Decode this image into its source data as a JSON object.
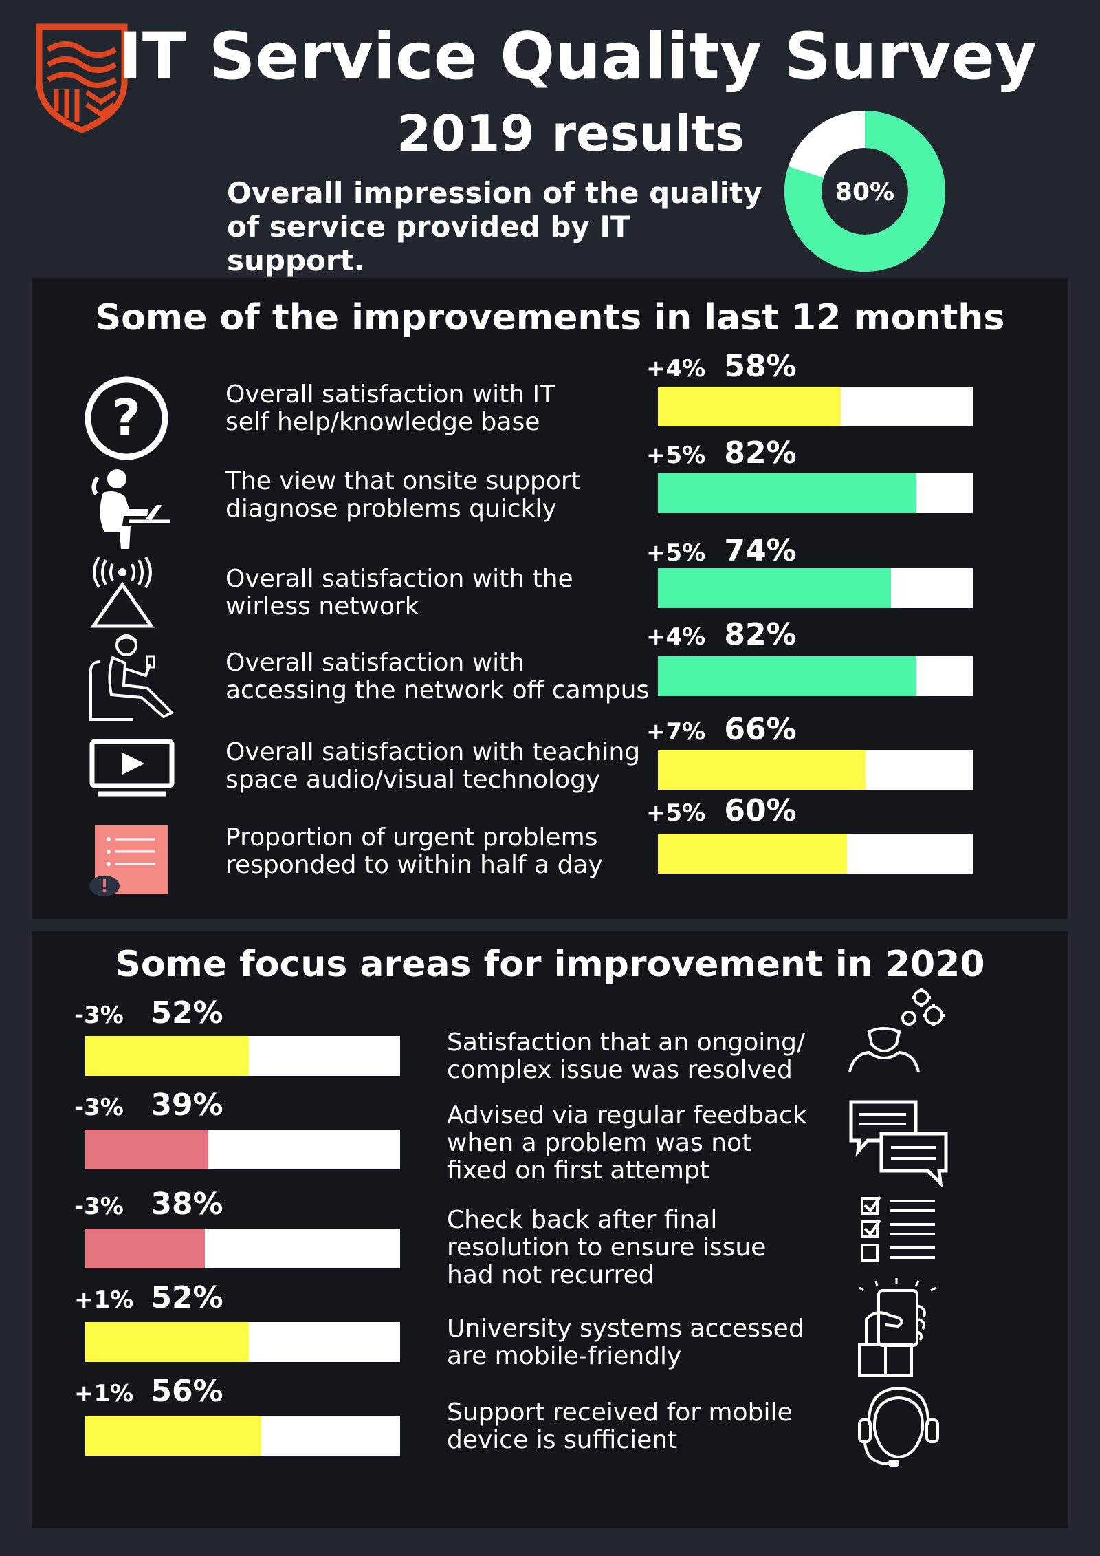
{
  "header": {
    "title": "IT Service Quality Survey",
    "subtitle": "2019 results",
    "overall_line1": "Overall impression of the quality",
    "overall_line2": "of service provided by IT support.",
    "overall_value": 80,
    "overall_label": "80%",
    "logo_icon": "shield-logo-icon"
  },
  "colors": {
    "background": "#22262f",
    "panel": "#14161c",
    "green": "#4cf4a8",
    "yellow": "#fcfc47",
    "red": "#e5727f",
    "white": "#ffffff",
    "logo": "#e0461f"
  },
  "improvements": {
    "title": "Some of the improvements in last 12 months",
    "items": [
      {
        "label": "Overall satisfaction with IT\nself help/knowledge base",
        "value": 58,
        "value_label": "58%",
        "change": "+4%",
        "color": "#fcfc47",
        "icon": "question-mark-icon"
      },
      {
        "label": "The view that onsite support\ndiagnose problems quickly",
        "value": 82,
        "value_label": "82%",
        "change": "+5%",
        "color": "#4cf4a8",
        "icon": "person-laptop-icon"
      },
      {
        "label": "Overall satisfaction with the\nwirless network",
        "value": 74,
        "value_label": "74%",
        "change": "+5%",
        "color": "#4cf4a8",
        "icon": "wireless-tower-icon"
      },
      {
        "label": "Overall satisfaction with\naccessing the network off campus",
        "value": 82,
        "value_label": "82%",
        "change": "+4%",
        "color": "#4cf4a8",
        "icon": "person-phone-chair-icon"
      },
      {
        "label": "Overall satisfaction with teaching\nspace audio/visual technology",
        "value": 66,
        "value_label": "66%",
        "change": "+7%",
        "color": "#fcfc47",
        "icon": "video-screen-icon"
      },
      {
        "label": "Proportion of urgent problems\nresponded to within half a day",
        "value": 60,
        "value_label": "60%",
        "change": "+5%",
        "color": "#fcfc47",
        "icon": "urgent-list-icon"
      }
    ]
  },
  "focus": {
    "title": "Some focus areas for improvement in 2020",
    "items": [
      {
        "label": "Satisfaction that an ongoing/\ncomplex issue was resolved",
        "value": 52,
        "value_label": "52%",
        "change": "-3%",
        "color": "#fcfc47",
        "icon": "person-gears-icon"
      },
      {
        "label": "Advised via regular feedback\nwhen a problem was not\nfixed on first attempt",
        "value": 39,
        "value_label": "39%",
        "change": "-3%",
        "color": "#e5727f",
        "icon": "chat-bubbles-icon"
      },
      {
        "label": "Check back after final\nresolution to ensure issue\nhad not recurred",
        "value": 38,
        "value_label": "38%",
        "change": "-3%",
        "color": "#e5727f",
        "icon": "checklist-icon"
      },
      {
        "label": "University systems accessed\nare mobile-friendly",
        "value": 52,
        "value_label": "52%",
        "change": "+1%",
        "color": "#fcfc47",
        "icon": "hand-phone-icon"
      },
      {
        "label": "Support received for mobile\ndevice is sufficient",
        "value": 56,
        "value_label": "56%",
        "change": "+1%",
        "color": "#fcfc47",
        "icon": "headset-agent-icon"
      }
    ]
  },
  "chart_data": [
    {
      "type": "pie",
      "categories": [
        "Overall impression"
      ],
      "values": [
        80
      ],
      "data_labels": [
        "80%"
      ]
    },
    {
      "type": "bar",
      "title": "Some of the improvements in last 12 months",
      "categories": [
        "Overall satisfaction with IT self help/knowledge base",
        "The view that onsite support diagnose problems quickly",
        "Overall satisfaction with the wirless network",
        "Overall satisfaction with accessing the network off campus",
        "Overall satisfaction with teaching space audio/visual technology",
        "Proportion of urgent problems responded to within half a day"
      ],
      "values": [
        58,
        82,
        74,
        82,
        66,
        60
      ],
      "changes": [
        "+4%",
        "+5%",
        "+5%",
        "+4%",
        "+7%",
        "+5%"
      ],
      "ylim": [
        0,
        100
      ]
    },
    {
      "type": "bar",
      "title": "Some focus areas for improvement in 2020",
      "categories": [
        "Satisfaction that an ongoing/complex issue was resolved",
        "Advised via regular feedback when a problem was not fixed on first attempt",
        "Check back after final resolution to ensure issue had not recurred",
        "University systems accessed are mobile-friendly",
        "Support received for mobile device is sufficient"
      ],
      "values": [
        52,
        39,
        38,
        52,
        56
      ],
      "changes": [
        "-3%",
        "-3%",
        "-3%",
        "+1%",
        "+1%"
      ],
      "ylim": [
        0,
        100
      ]
    }
  ]
}
